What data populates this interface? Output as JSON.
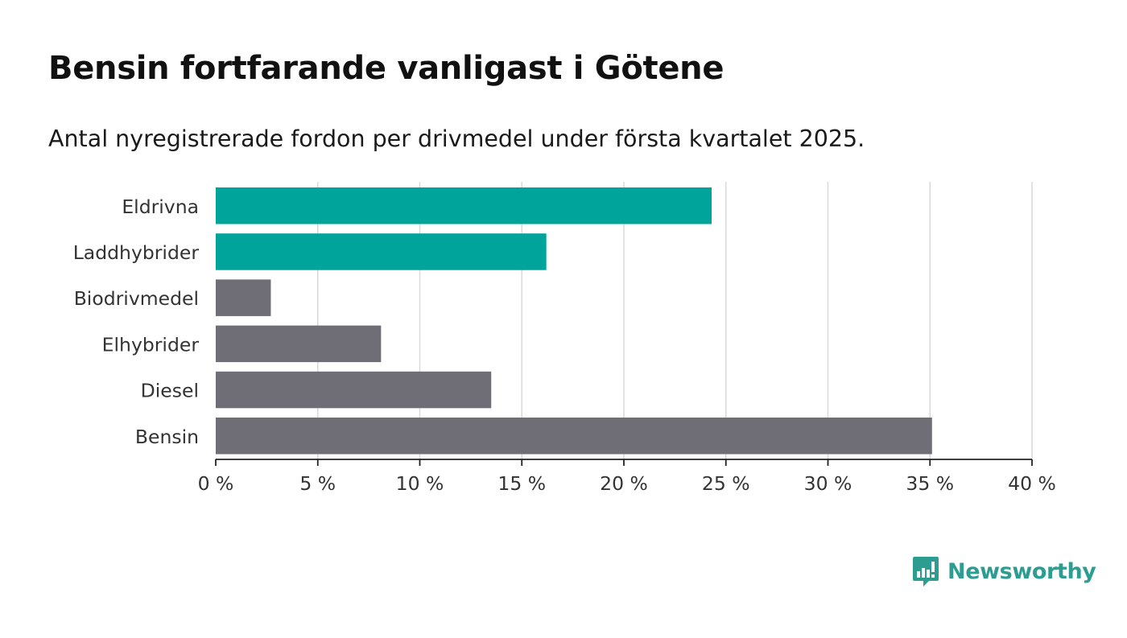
{
  "chart_data": {
    "type": "bar",
    "orientation": "horizontal",
    "title": "Bensin fortfarande vanligast i Götene",
    "subtitle": "Antal nyregistrerade fordon per drivmedel under första kvartalet 2025.",
    "categories": [
      "Eldrivna",
      "Laddhybrider",
      "Biodrivmedel",
      "Elhybrider",
      "Diesel",
      "Bensin"
    ],
    "values": [
      24.3,
      16.2,
      2.7,
      8.1,
      13.5,
      35.1
    ],
    "bar_colors": [
      "#00a49a",
      "#00a49a",
      "#6f6e76",
      "#6f6e76",
      "#6f6e76",
      "#6f6e76"
    ],
    "xlim": [
      0,
      40
    ],
    "xticks": [
      0,
      5,
      10,
      15,
      20,
      25,
      30,
      35,
      40
    ],
    "xtick_labels": [
      "0 %",
      "5 %",
      "10 %",
      "15 %",
      "20 %",
      "25 %",
      "30 %",
      "35 %",
      "40 %"
    ],
    "xlabel": "",
    "ylabel": "",
    "grid": "vertical",
    "legend": "none"
  },
  "brand": {
    "name": "Newsworthy",
    "icon": "bar-chart-speech-bubble-icon",
    "color": "#2e9d91"
  }
}
